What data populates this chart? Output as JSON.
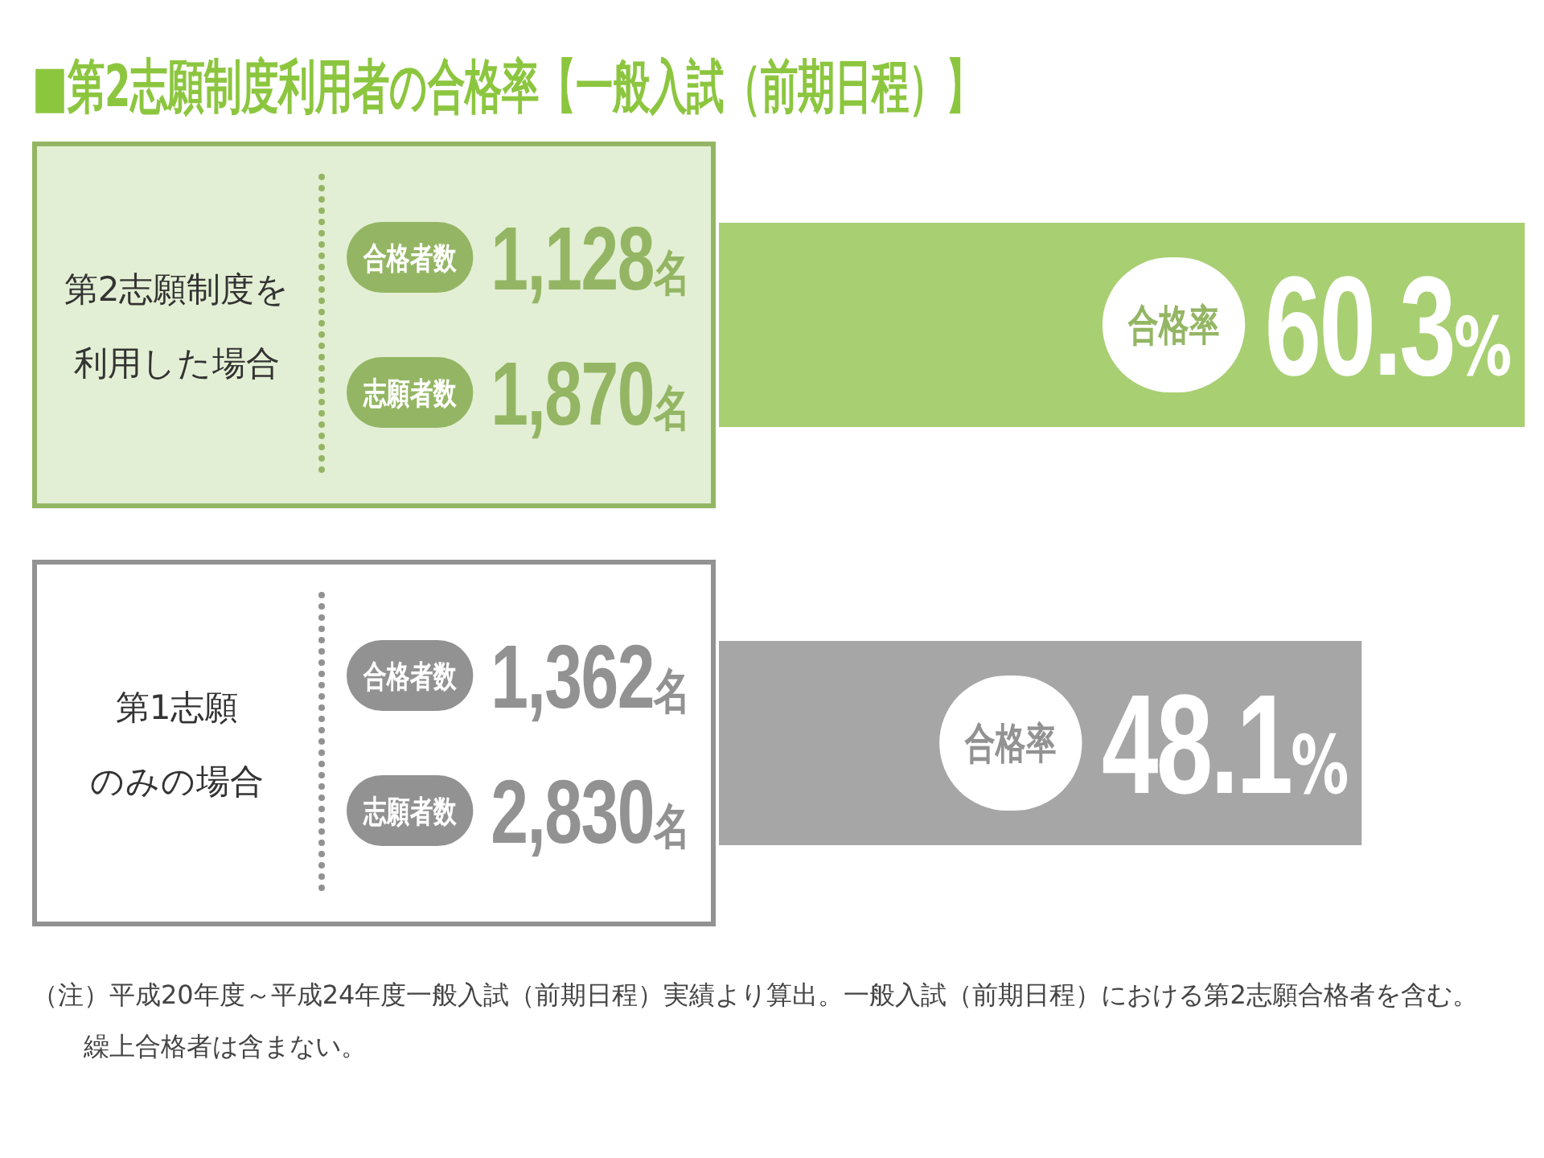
{
  "chart_data": {
    "type": "bar",
    "orientation": "horizontal",
    "title": "■第2志願制度利用者の合格率【一般入試（前期日程）】",
    "categories": [
      "第2志願制度を利用した場合",
      "第1志願のみの場合"
    ],
    "values": [
      60.3,
      48.1
    ],
    "colors": [
      "#a8cf72",
      "#a6a6a6"
    ],
    "value_labels": [
      "合格率 60.3%",
      "合格率 48.1%"
    ],
    "annotations": [
      "合格者数 1,128名",
      "志願者数 1,870名",
      "合格者数 1,362名",
      "志願者数 2,830名",
      "（注）平成20年度～平成24年度一般入試（前期日程）実績より算出。一般入試（前期日程）における第2志願合格者を含む。繰上合格者は含まない。"
    ]
  }
}
